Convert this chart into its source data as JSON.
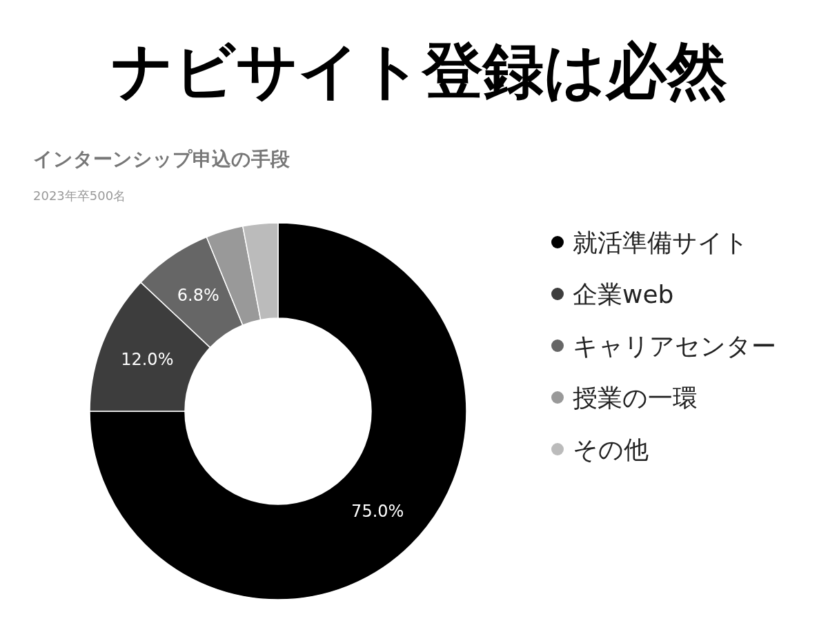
{
  "chart_data": {
    "type": "donut",
    "title": "ナビサイト登録は必然",
    "subtitle": "インターンシップ申込の手段",
    "annotations": [
      "2023年卒500名"
    ],
    "categories": [
      "就活準備サイト",
      "企業web",
      "キャリアセンター",
      "授業の一環",
      "その他"
    ],
    "values": [
      75.0,
      12.0,
      6.8,
      3.2,
      3.0
    ],
    "colors": [
      "#000000",
      "#3d3d3d",
      "#666666",
      "#999999",
      "#bbbbbb"
    ],
    "value_labels": [
      "75.0%",
      "12.0%",
      "6.8%",
      null,
      null
    ],
    "legend": "right"
  }
}
